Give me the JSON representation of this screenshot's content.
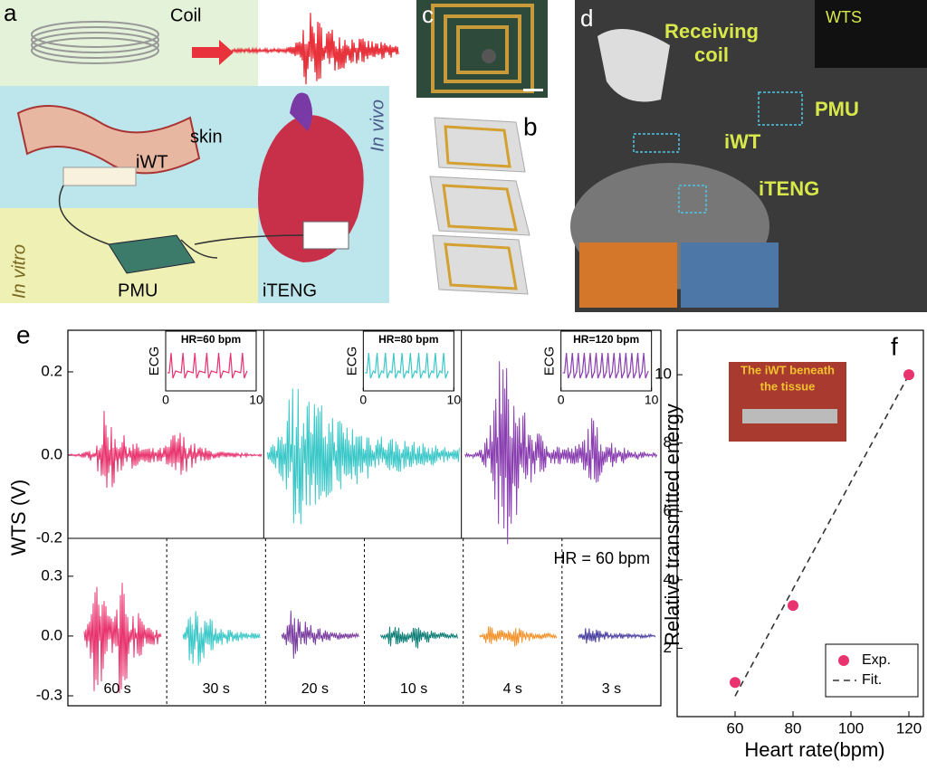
{
  "panel_a": {
    "label": "a",
    "coil": "Coil",
    "skin": "skin",
    "iwt": "iWT",
    "in_vivo": "In vivo",
    "in_vitro": "In vitro",
    "pmu": "PMU",
    "iteng": "iTENG"
  },
  "panel_b": {
    "label": "b"
  },
  "panel_c": {
    "label": "c"
  },
  "panel_d": {
    "label": "d",
    "receiving_coil": [
      "Receiving",
      "coil"
    ],
    "wts": "WTS",
    "pmu": "PMU",
    "iwt": "iWT",
    "iteng": "iTENG"
  },
  "chart_data": [
    {
      "type": "waveform",
      "label": "e",
      "ylabel": "WTS (V)",
      "ylim": [
        -0.2,
        0.3
      ],
      "yticks": [
        {
          "value": -0.2,
          "label": "-0.2"
        },
        {
          "value": 0,
          "label": "0.0"
        },
        {
          "value": 0.2,
          "label": "0.2"
        }
      ],
      "insets": [
        {
          "title": "HR=60 bpm",
          "ylabel": "ECG",
          "color": "#e8336e",
          "xticks": [
            0,
            10
          ]
        },
        {
          "title": "HR=80 bpm",
          "ylabel": "ECG",
          "color": "#3cc8c8",
          "xticks": [
            0,
            10
          ]
        },
        {
          "title": "HR=120 bpm",
          "ylabel": "ECG",
          "color": "#8a3fb0",
          "xticks": [
            0,
            10
          ]
        }
      ]
    },
    {
      "type": "waveform",
      "ylim": [
        -0.35,
        0.49
      ],
      "yticks": [
        {
          "value": -0.3,
          "label": "-0.3"
        },
        {
          "value": 0,
          "label": "0.0"
        },
        {
          "value": 0.3,
          "label": "0.3"
        }
      ],
      "annotation": "HR = 60 bpm",
      "categories": [
        "60 s",
        "30 s",
        "20 s",
        "10 s",
        "4 s",
        "3 s"
      ],
      "colors": [
        "#e8336e",
        "#3cc8c8",
        "#7b3fa0",
        "#0f7f78",
        "#f5922a",
        "#4a3fa0"
      ]
    },
    {
      "type": "scatter",
      "label": "f",
      "xlabel": "Heart rate(bpm)",
      "ylabel": "Relative transmitted energy",
      "inset_text": [
        "The iWT beneath",
        "the tissue"
      ],
      "xlim": [
        40,
        125
      ],
      "ylim": [
        0,
        11.3
      ],
      "xticks": [
        60,
        80,
        100,
        120
      ],
      "yticks": [
        2,
        4,
        6,
        8,
        10
      ],
      "legend": "lower right",
      "series": [
        {
          "name": "Exp.",
          "color": "#e8336e",
          "x": [
            60,
            80,
            120
          ],
          "values": [
            1,
            3.25,
            10
          ]
        },
        {
          "name": "Fit.",
          "color": "#333333",
          "x": [
            60,
            120
          ],
          "values": [
            0.6,
            10
          ]
        }
      ]
    }
  ]
}
